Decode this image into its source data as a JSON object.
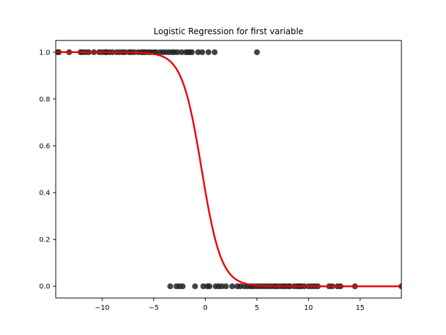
{
  "chart_data": {
    "type": "scatter",
    "title": "Logistic Regression for first variable",
    "xlabel": "",
    "ylabel": "",
    "xlim": [
      -14.5,
      19
    ],
    "ylim": [
      -0.05,
      1.05
    ],
    "x_ticks": [
      -10,
      -5,
      0,
      5,
      10,
      15
    ],
    "x_tick_labels": [
      "−10",
      "−5",
      "0",
      "5",
      "10",
      "15"
    ],
    "y_ticks": [
      0.0,
      0.2,
      0.4,
      0.6,
      0.8,
      1.0
    ],
    "y_tick_labels": [
      "0.0",
      "0.2",
      "0.4",
      "0.6",
      "0.8",
      "1.0"
    ],
    "grid": false,
    "colors": {
      "points": "#222222",
      "curve": "#ee0000",
      "frame": "#000000"
    },
    "series": [
      {
        "kind": "scatter",
        "points_y1_x": [
          -14.3,
          -14.2,
          -13.2,
          -12.1,
          -11.9,
          -11.6,
          -11.3,
          -10.8,
          -10.3,
          -10.0,
          -9.7,
          -9.6,
          -9.3,
          -9.0,
          -8.6,
          -8.3,
          -8.0,
          -7.8,
          -7.4,
          -7.2,
          -6.9,
          -6.5,
          -6.2,
          -6.0,
          -5.8,
          -5.5,
          -5.3,
          -5.0,
          -4.8,
          -4.4,
          -4.1,
          -3.8,
          -3.5,
          -3.2,
          -3.0,
          -2.7,
          -2.3,
          -1.9,
          -1.7,
          -1.5,
          -1.3,
          -0.7,
          -0.3,
          0.3,
          0.9,
          5.0
        ],
        "points_y0_x": [
          -3.4,
          -2.8,
          -2.5,
          -2.2,
          -1.0,
          -0.2,
          0.2,
          0.4,
          1.0,
          1.3,
          1.6,
          2.0,
          2.6,
          3.1,
          3.4,
          3.8,
          4.1,
          4.4,
          4.6,
          4.9,
          5.2,
          5.5,
          5.8,
          6.1,
          6.4,
          6.7,
          6.9,
          7.2,
          7.5,
          7.7,
          8.0,
          8.2,
          8.6,
          8.9,
          9.1,
          9.3,
          9.6,
          10.0,
          10.3,
          10.6,
          10.9,
          12.0,
          12.3,
          12.8,
          13.1,
          14.5,
          19.0
        ]
      },
      {
        "kind": "logistic-curve",
        "intercept": -0.38,
        "slope": -1.05,
        "x_range": [
          -14.5,
          19
        ]
      }
    ]
  }
}
